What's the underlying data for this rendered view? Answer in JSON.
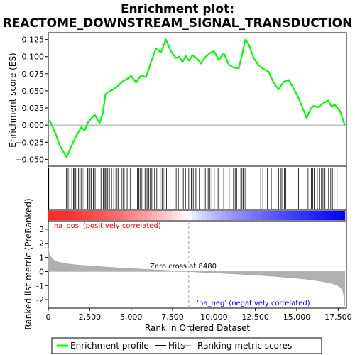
{
  "chart_data": {
    "type": "line",
    "title_line1": "Enrichment plot:",
    "title_line2": "REACTOME_DOWNSTREAM_SIGNAL_TRANSDUCTION",
    "xlabel": "Rank in Ordered Dataset",
    "ylabel_top": "Enrichment score (ES)",
    "ylabel_bottom": "Ranked list metric (PreRanked)",
    "x_range": [
      0,
      18000
    ],
    "x_ticks": [
      0,
      2500,
      5000,
      7500,
      10000,
      12500,
      15000,
      17500
    ],
    "x_tick_labels": [
      "0",
      "2,500",
      "5,000",
      "7,500",
      "10,000",
      "12,500",
      "15,000",
      "17,500"
    ],
    "es_range": [
      -0.06,
      0.135
    ],
    "es_ticks": [
      -0.05,
      -0.025,
      0.0,
      0.025,
      0.05,
      0.075,
      0.1,
      0.125
    ],
    "es_tick_labels": [
      "−0.050",
      "−0.025",
      "0.000",
      "0.025",
      "0.050",
      "0.075",
      "0.100",
      "0.125"
    ],
    "metric_range": [
      -2.6,
      3.6
    ],
    "metric_ticks": [
      -2,
      -1,
      0,
      1,
      2,
      3
    ],
    "metric_tick_labels": [
      "-2",
      "-1",
      "0",
      "1",
      "2",
      "3"
    ],
    "zero_cross": 8480,
    "zero_cross_label": "Zero cross at 8480",
    "pos_label": "'na_pos' (positively correlated)",
    "neg_label": "'na_neg' (negatively correlated)",
    "enrichment_profile": {
      "x": [
        0,
        100,
        400,
        700,
        1100,
        1300,
        1500,
        1700,
        2000,
        2200,
        2400,
        2600,
        2800,
        3100,
        3300,
        3450,
        3600,
        3900,
        4200,
        4500,
        4800,
        5000,
        5300,
        5600,
        5900,
        6200,
        6500,
        6800,
        7100,
        7400,
        7700,
        7900,
        8100,
        8300,
        8500,
        8700,
        9000,
        9200,
        9500,
        9800,
        10000,
        10300,
        10600,
        10900,
        11200,
        11500,
        11700,
        11900,
        12100,
        12400,
        12700,
        13000,
        13300,
        13600,
        13900,
        14200,
        14500,
        14800,
        15100,
        15400,
        15600,
        15800,
        16000,
        16300,
        16600,
        16900,
        17100,
        17300,
        17600,
        17900
      ],
      "y": [
        0.005,
        0.006,
        -0.01,
        -0.03,
        -0.047,
        -0.036,
        -0.025,
        -0.015,
        -0.003,
        -0.008,
        0.004,
        0.01,
        0.015,
        0.003,
        0.018,
        0.045,
        0.048,
        0.052,
        0.057,
        0.064,
        0.068,
        0.072,
        0.062,
        0.073,
        0.07,
        0.092,
        0.112,
        0.106,
        0.125,
        0.108,
        0.098,
        0.1,
        0.092,
        0.101,
        0.094,
        0.102,
        0.097,
        0.09,
        0.1,
        0.106,
        0.108,
        0.095,
        0.105,
        0.088,
        0.084,
        0.083,
        0.103,
        0.125,
        0.118,
        0.098,
        0.087,
        0.082,
        0.078,
        0.062,
        0.052,
        0.063,
        0.066,
        0.054,
        0.04,
        0.022,
        0.01,
        0.022,
        0.028,
        0.026,
        0.032,
        0.036,
        0.027,
        0.03,
        0.021,
        0.0
      ]
    },
    "hits": [
      30,
      1100,
      1200,
      1300,
      1420,
      1520,
      1580,
      1660,
      1740,
      1830,
      1900,
      1980,
      2050,
      2150,
      2380,
      2450,
      2520,
      2600,
      2720,
      2830,
      3180,
      3320,
      3390,
      3460,
      3520,
      3590,
      3690,
      3820,
      3950,
      4080,
      4150,
      4230,
      4420,
      4510,
      4580,
      4760,
      4870,
      4960,
      5380,
      5460,
      5540,
      5620,
      5710,
      5840,
      5960,
      6070,
      6160,
      6250,
      6420,
      6550,
      6760,
      6870,
      6940,
      7040,
      7130,
      7720,
      7850,
      8150,
      8280,
      8480,
      8640,
      8750,
      8910,
      9120,
      9480,
      9650,
      9760,
      9870,
      10020,
      10250,
      10590,
      10920,
      11180,
      11280,
      11370,
      11620,
      11690,
      11760,
      11820,
      11910,
      12820,
      12950,
      13230,
      13460,
      13900,
      14020,
      14100,
      14250,
      14330,
      15110,
      15680,
      15800,
      15880,
      15970,
      16050,
      16240,
      16380,
      16490,
      16580,
      16700,
      16920,
      17050,
      17150,
      17430
    ],
    "metric_curve": {
      "x": [
        0,
        50,
        150,
        300,
        600,
        1000,
        1500,
        2000,
        3000,
        4000,
        5000,
        6000,
        7000,
        8000,
        8480,
        9000,
        10000,
        11000,
        12000,
        13000,
        14000,
        15000,
        15800,
        16500,
        17000,
        17300,
        17500,
        17700,
        17800,
        17850,
        17900
      ],
      "y": [
        1.7,
        1.3,
        1.05,
        0.85,
        0.68,
        0.57,
        0.5,
        0.45,
        0.36,
        0.28,
        0.21,
        0.15,
        0.09,
        0.03,
        0.0,
        -0.04,
        -0.1,
        -0.16,
        -0.22,
        -0.29,
        -0.38,
        -0.48,
        -0.58,
        -0.7,
        -0.82,
        -0.92,
        -1.02,
        -1.2,
        -1.45,
        -1.9,
        -2.45
      ]
    },
    "legend": [
      "Enrichment profile",
      "Hits",
      "Ranking metric scores"
    ],
    "colors": {
      "profile": "#00ff00",
      "hits": "#000000",
      "metric": "#b0b0b0",
      "pos": "#ff0000",
      "neg": "#0000ff",
      "zero_line": "#a0a0a0"
    }
  }
}
